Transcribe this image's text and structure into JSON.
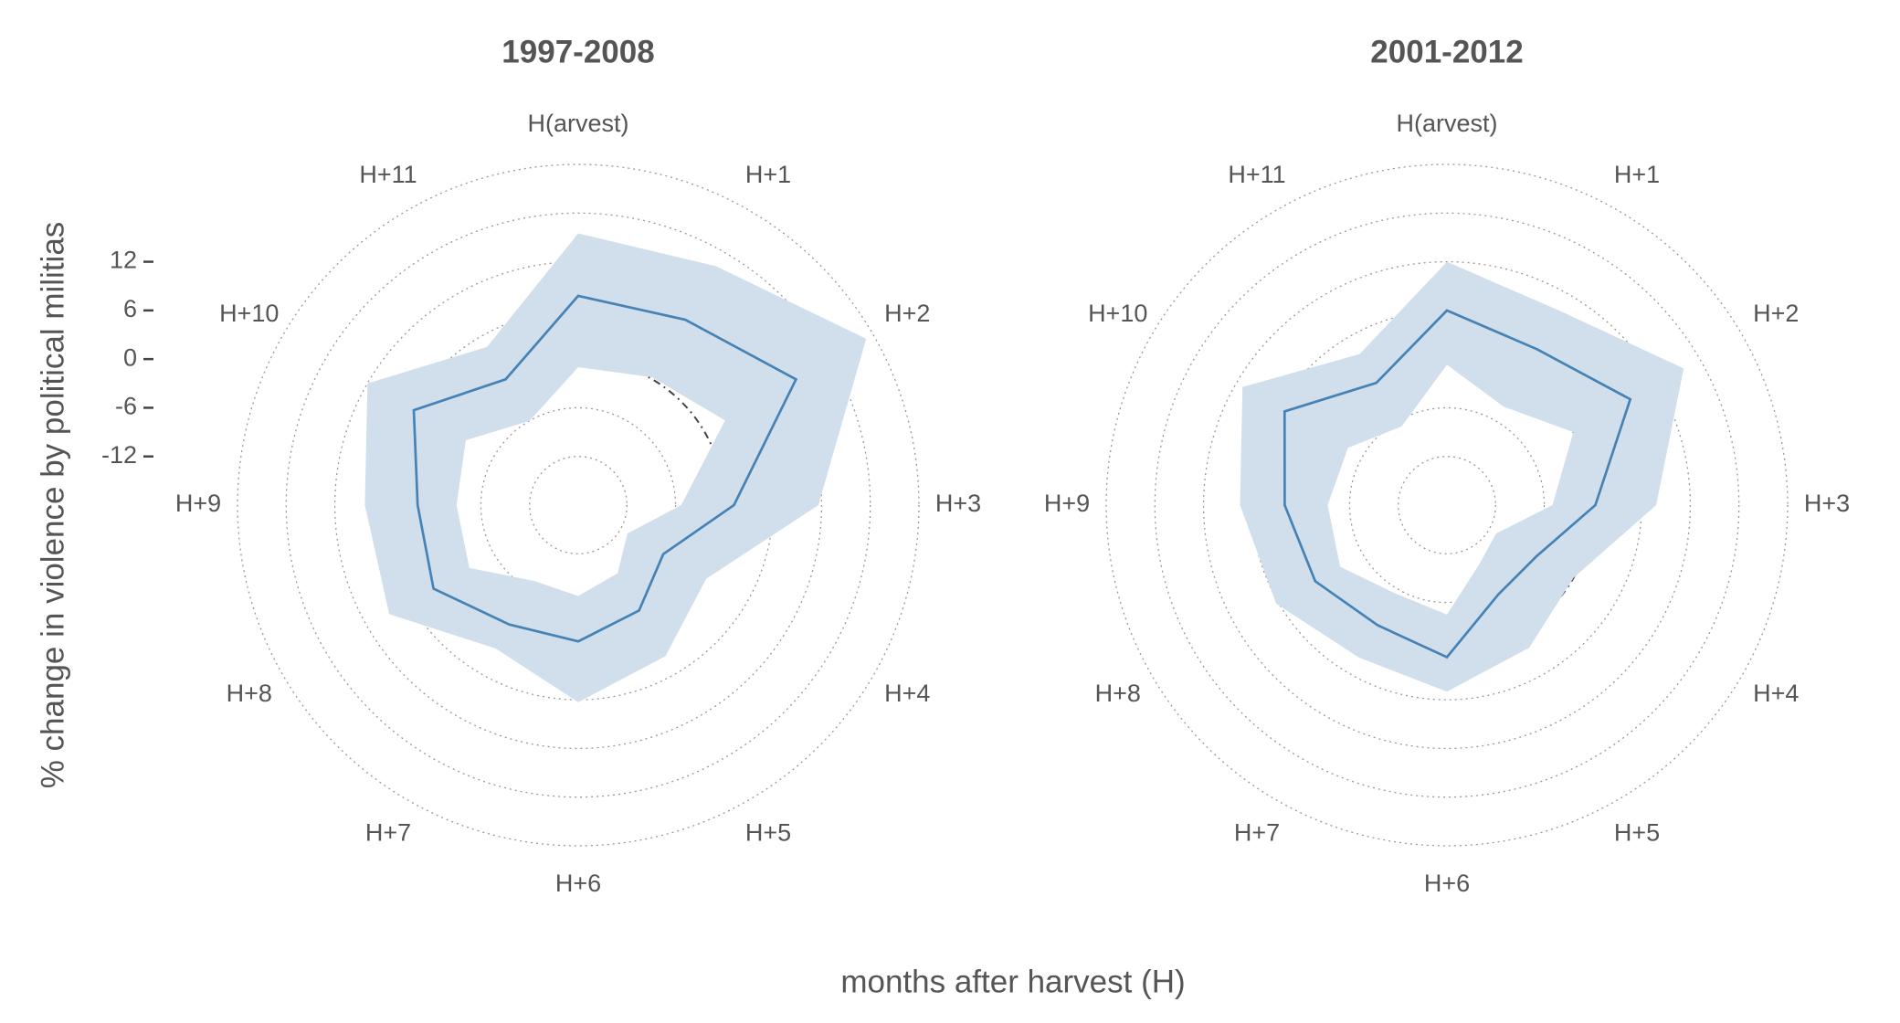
{
  "xlabel": "months after harvest (H)",
  "ylabel": "% change in violence by political militias",
  "chart_data": [
    {
      "type": "radar",
      "title": "1997-2008",
      "categories": [
        "H(arvest)",
        "H+1",
        "H+2",
        "H+3",
        "H+4",
        "H+5",
        "H+6",
        "H+7",
        "H+8",
        "H+9",
        "H+10",
        "H+11"
      ],
      "values": [
        7.8,
        8.4,
        13,
        1.2,
        -5.9,
        -3,
        -1.2,
        -1,
        2.6,
        1.8,
        5.4,
        -0.1
      ],
      "lower": [
        -1,
        0.2,
        2.9,
        -5.3,
        -11,
        -8.3,
        -6.8,
        -7.2,
        -2.5,
        -3,
        -2,
        -6
      ],
      "upper": [
        15.5,
        16,
        23,
        11.6,
        0.2,
        3.5,
        6.3,
        2.4,
        8.9,
        8.3,
        12,
        4.5
      ],
      "color": "#4682b4",
      "band_color": "#d1dfec",
      "ylim": [
        -18,
        24
      ],
      "yticks": [
        -12,
        -6,
        0,
        6,
        12
      ]
    },
    {
      "type": "radar",
      "title": "2001-2012",
      "categories": [
        "H(arvest)",
        "H+1",
        "H+2",
        "H+3",
        "H+4",
        "H+5",
        "H+6",
        "H+7",
        "H+8",
        "H+9",
        "H+10",
        "H+11"
      ],
      "values": [
        6,
        4.2,
        8.1,
        0.3,
        -5.3,
        -5.3,
        0.75,
        -0.9,
        0.75,
        2,
        5.1,
        -0.6
      ],
      "lower": [
        -0.7,
        -4,
        0,
        -5,
        -11,
        -9.8,
        -4.5,
        -5.4,
        -2.8,
        -3.3,
        -3.9,
        -6.8
      ],
      "upper": [
        12,
        9.7,
        15.7,
        7.8,
        0,
        2.3,
        5,
        3.7,
        6.3,
        7.5,
        11.1,
        3.5
      ],
      "color": "#4682b4",
      "band_color": "#d1dfec",
      "ylim": [
        -18,
        24
      ]
    }
  ]
}
